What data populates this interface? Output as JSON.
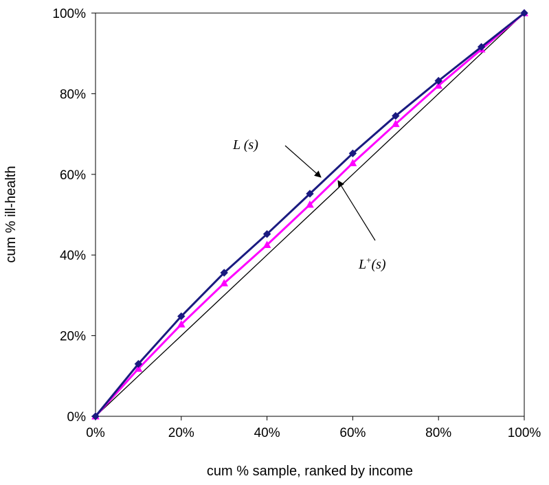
{
  "chart_data": {
    "type": "line",
    "title": "",
    "xlabel": "cum % sample, ranked by income",
    "ylabel": "cum % ill-health",
    "xlim": [
      0,
      1
    ],
    "ylim": [
      0,
      1
    ],
    "x_ticks": [
      "0%",
      "20%",
      "40%",
      "60%",
      "80%",
      "100%"
    ],
    "y_ticks": [
      "0%",
      "20%",
      "40%",
      "60%",
      "80%",
      "100%"
    ],
    "grid": false,
    "legend": "none",
    "x": [
      0,
      0.1,
      0.2,
      0.3,
      0.4,
      0.5,
      0.6,
      0.7,
      0.8,
      0.9,
      1.0
    ],
    "series": [
      {
        "color": "#1a1a80",
        "marker": "diamond",
        "values": [
          0,
          0.13,
          0.248,
          0.356,
          0.452,
          0.552,
          0.652,
          0.745,
          0.832,
          0.916,
          1.0
        ]
      },
      {
        "color": "#ff00ff",
        "marker": "triangle",
        "values": [
          0,
          0.118,
          0.228,
          0.33,
          0.425,
          0.525,
          0.628,
          0.725,
          0.82,
          0.91,
          1.0
        ]
      },
      {
        "color": "#000000",
        "marker": "none",
        "values": [
          0,
          0.1,
          0.2,
          0.3,
          0.4,
          0.5,
          0.6,
          0.7,
          0.8,
          0.9,
          1.0
        ]
      }
    ],
    "annotations": [
      {
        "base": "L",
        "sup": "",
        "tail": " (s)"
      },
      {
        "base": "L",
        "sup": "+",
        "tail": "(s)"
      }
    ]
  }
}
